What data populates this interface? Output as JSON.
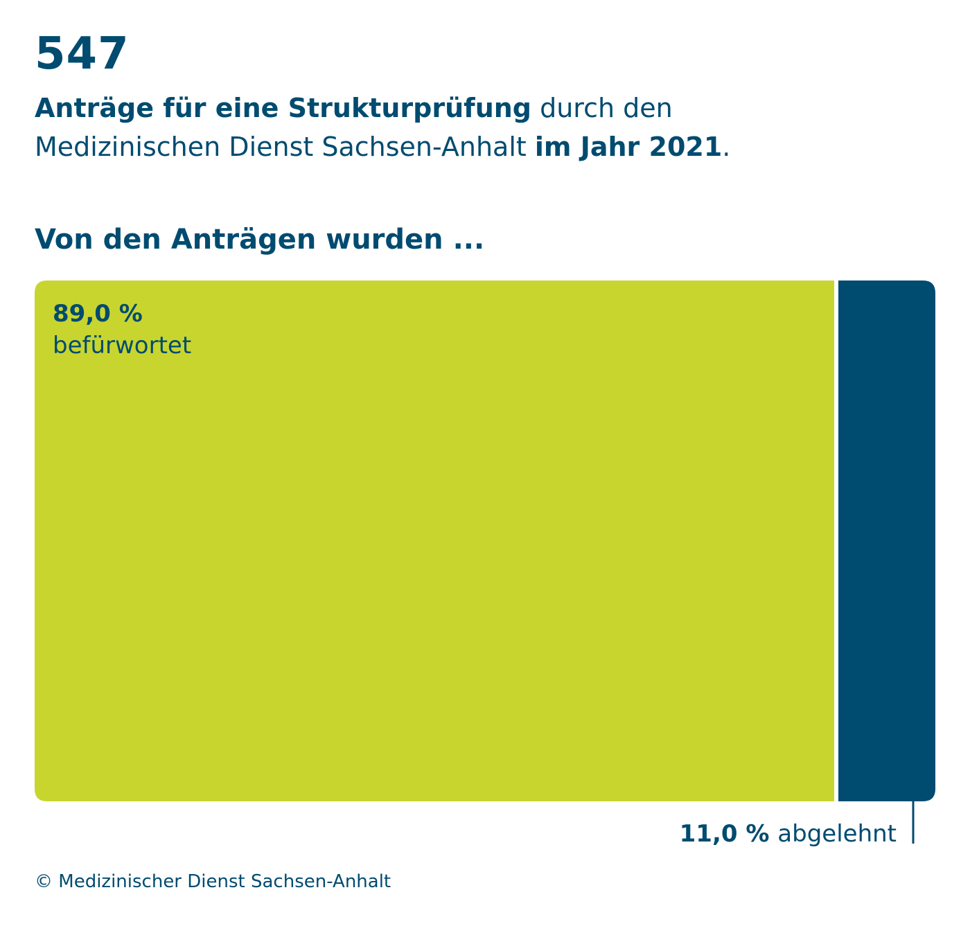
{
  "header": {
    "count": "547",
    "line1_bold": "Anträge für eine Strukturprüfung",
    "line1_rest": " durch den",
    "line2_normal": "Medizinischen Dienst Sachsen-Anhalt ",
    "line2_bold": "im Jahr 2021",
    "line2_end": "."
  },
  "subheadline": "Von den Anträgen wurden ...",
  "footer": "© Medizinischer Dienst Sachsen-Anhalt",
  "colors": {
    "approved": "#c8d52e",
    "rejected": "#004b70",
    "text": "#004b70"
  },
  "chart_data": {
    "type": "bar",
    "orientation": "horizontal-stacked",
    "total": 547,
    "title": "Von den Anträgen wurden ...",
    "series": [
      {
        "name": "befürwortet",
        "value": 89.0,
        "value_label": "89,0 %",
        "color": "#c8d52e"
      },
      {
        "name": "abgelehnt",
        "value": 11.0,
        "value_label": "11,0 %",
        "color": "#004b70"
      }
    ],
    "unit": "%",
    "legend": "inline labels"
  }
}
